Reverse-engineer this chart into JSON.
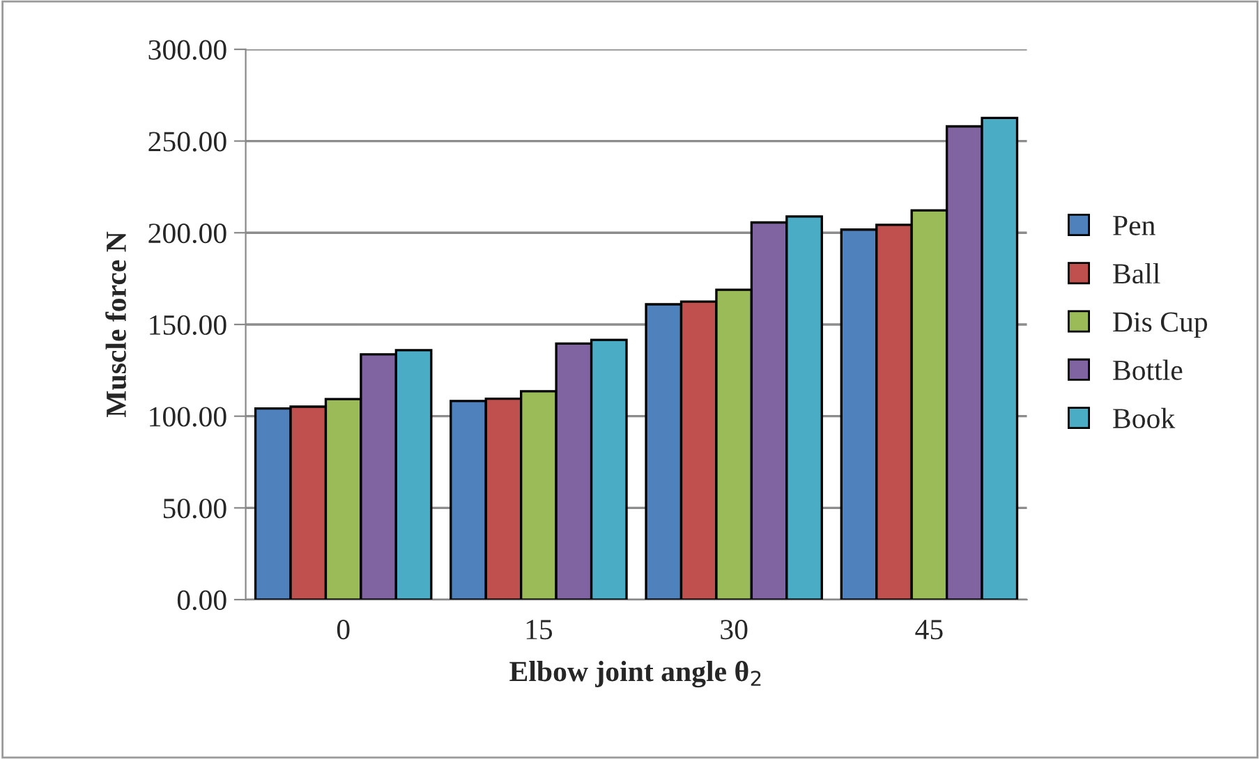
{
  "chart_data": {
    "type": "bar",
    "xlabel": "Elbow joint angle θ$_{2}$",
    "ylabel": "Muscle force N",
    "categories": [
      "0",
      "15",
      "30",
      "45"
    ],
    "series": [
      {
        "name": "Pen",
        "color": "#4f81bd",
        "values": [
          104.2,
          108.3,
          161.0,
          201.7
        ]
      },
      {
        "name": "Ball",
        "color": "#c0504d",
        "values": [
          105.2,
          109.5,
          162.5,
          204.3
        ]
      },
      {
        "name": "Dis Cup",
        "color": "#9bbb59",
        "values": [
          109.3,
          113.6,
          168.9,
          212.2
        ]
      },
      {
        "name": "Bottle",
        "color": "#8064a2",
        "values": [
          133.7,
          139.6,
          205.6,
          258.0
        ]
      },
      {
        "name": "Book",
        "color": "#4bacc6",
        "values": [
          136.0,
          141.6,
          208.9,
          262.6
        ]
      }
    ],
    "ylim": [
      0,
      300
    ],
    "yticks": [
      {
        "value": 0,
        "label": "0.00"
      },
      {
        "value": 50,
        "label": "50.00"
      },
      {
        "value": 100,
        "label": "100.00"
      },
      {
        "value": 150,
        "label": "150.00"
      },
      {
        "value": 200,
        "label": "200.00"
      },
      {
        "value": 250,
        "label": "250.00"
      },
      {
        "value": 300,
        "label": "300.00"
      }
    ],
    "grid": "y",
    "legend": "right"
  }
}
